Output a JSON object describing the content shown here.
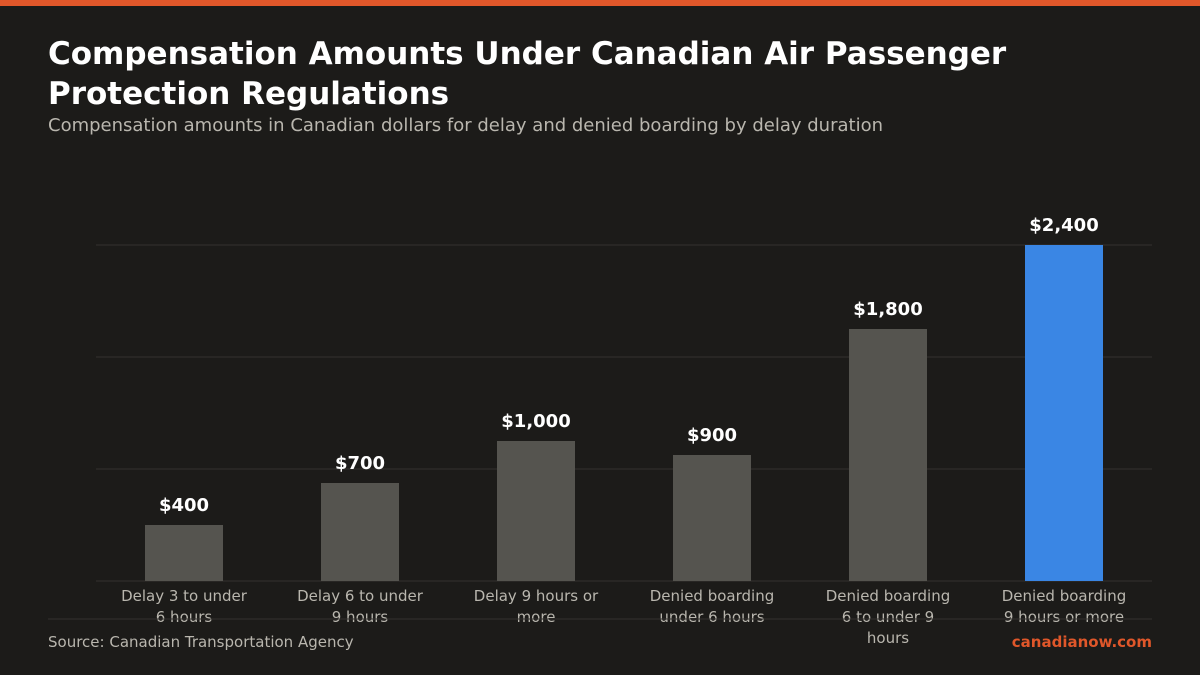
{
  "header": {
    "title": "Compensation Amounts Under Canadian Air Passenger Protection Regulations",
    "subtitle": "Compensation amounts in Canadian dollars for delay and denied boarding by delay duration"
  },
  "footer": {
    "source": "Source: Canadian Transportation Agency",
    "brand": "canadianow.com"
  },
  "colors": {
    "accent": "#e0572a",
    "bar_default": "#55544f",
    "bar_highlight": "#3a86e4",
    "background": "#1c1b19"
  },
  "chart_data": {
    "type": "bar",
    "title": "Compensation Amounts Under Canadian Air Passenger Protection Regulations",
    "subtitle": "Compensation amounts in Canadian dollars for delay and denied boarding by delay duration",
    "xlabel": "",
    "ylabel": "",
    "categories": [
      [
        "Delay 3 to under",
        "6 hours"
      ],
      [
        "Delay 6 to under",
        "9 hours"
      ],
      [
        "Delay 9 hours or",
        "more"
      ],
      [
        "Denied boarding",
        "under 6 hours"
      ],
      [
        "Denied boarding",
        "6 to under 9",
        "hours"
      ],
      [
        "Denied boarding",
        "9 hours or more"
      ]
    ],
    "values": [
      400,
      700,
      1000,
      900,
      1800,
      2400
    ],
    "data_labels": [
      "$400",
      "$700",
      "$1,000",
      "$900",
      "$1,800",
      "$2,400"
    ],
    "highlight_index": 5,
    "ylim": [
      0,
      2400
    ],
    "gridlines": [
      800,
      1600,
      2400
    ],
    "grid": true,
    "legend": "none"
  }
}
